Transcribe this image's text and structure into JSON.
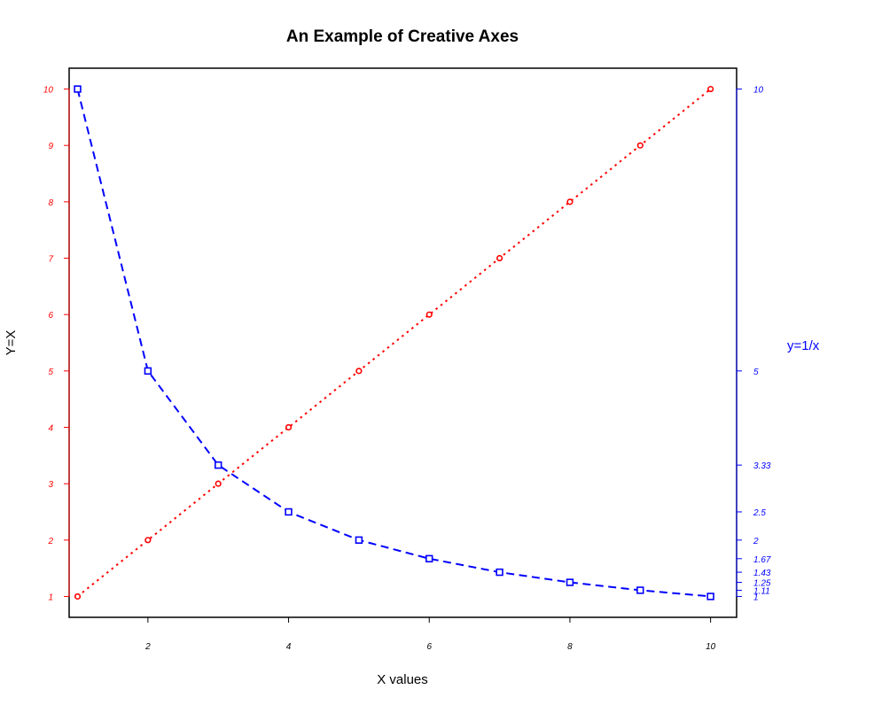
{
  "chart_data": {
    "type": "line",
    "title": "An Example of Creative Axes",
    "xlabel": "X values",
    "ylabel_left": "Y=X",
    "ylabel_right": "y=1/x",
    "x": [
      1,
      2,
      3,
      4,
      5,
      6,
      7,
      8,
      9,
      10
    ],
    "xlim": [
      0.88,
      10.37
    ],
    "ylim": [
      0.63,
      10.37
    ],
    "x_ticks": [
      2,
      4,
      6,
      8,
      10
    ],
    "x_tick_labels": [
      "2",
      "4",
      "6",
      "8",
      "10"
    ],
    "y_left_ticks": [
      1,
      2,
      3,
      4,
      5,
      6,
      7,
      8,
      9,
      10
    ],
    "y_left_tick_labels": [
      "1",
      "2",
      "3",
      "4",
      "5",
      "6",
      "7",
      "8",
      "9",
      "10"
    ],
    "y_right_ticks": [
      10,
      5,
      3.33,
      2.5,
      2,
      1.67,
      1.43,
      1.25,
      1.11,
      1
    ],
    "y_right_tick_labels": [
      "10",
      "5",
      "3.33",
      "2.5",
      "2",
      "1.67",
      "1.43",
      "1.25",
      "1.11",
      "1"
    ],
    "series": [
      {
        "values": [
          1,
          2,
          3,
          4,
          5,
          6,
          7,
          8,
          9,
          10
        ],
        "color": "#ff0000",
        "marker": "circle",
        "line_style": "dotted"
      },
      {
        "values": [
          10,
          5,
          3.33,
          2.5,
          2,
          1.67,
          1.43,
          1.25,
          1.11,
          1
        ],
        "color": "#0000ff",
        "marker": "square",
        "line_style": "dashed"
      }
    ],
    "grid": false,
    "legend": "none"
  },
  "colors": {
    "left_axis": "#ff0000",
    "right_axis": "#0000ff",
    "bottom_axis": "#000000"
  }
}
